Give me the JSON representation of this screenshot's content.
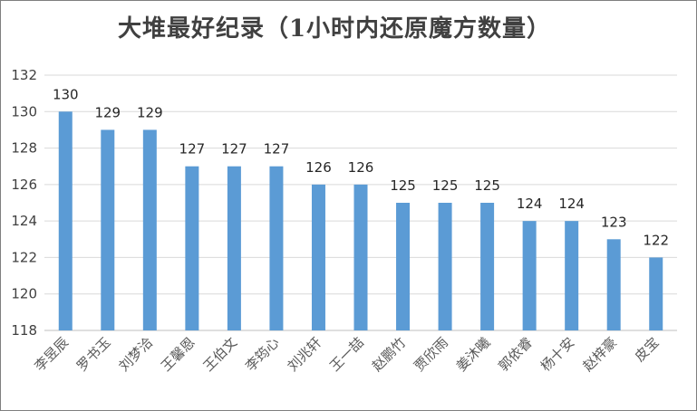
{
  "chart_data": {
    "type": "bar",
    "title": "大堆最好纪录（1小时内还原魔方数量）",
    "categories": [
      "李昱辰",
      "罗书玉",
      "刘梦洽",
      "王馨恩",
      "王伯文",
      "李筠心",
      "刘兆轩",
      "王一喆",
      "赵鹏竹",
      "贾欣雨",
      "姜沐曦",
      "郭依睿",
      "杨十安",
      "赵梓豪",
      "皮宝"
    ],
    "values": [
      130,
      129,
      129,
      127,
      127,
      127,
      126,
      126,
      125,
      125,
      125,
      124,
      124,
      123,
      122
    ],
    "ylim": [
      118,
      132
    ],
    "yticks": [
      118,
      120,
      122,
      124,
      126,
      128,
      130,
      132
    ],
    "xlabel": "",
    "ylabel": "",
    "grid": true,
    "legend": "none",
    "colors": {
      "bar": "#5b9bd5",
      "grid": "#d9d9d9",
      "axis": "#bfbfbf"
    }
  }
}
